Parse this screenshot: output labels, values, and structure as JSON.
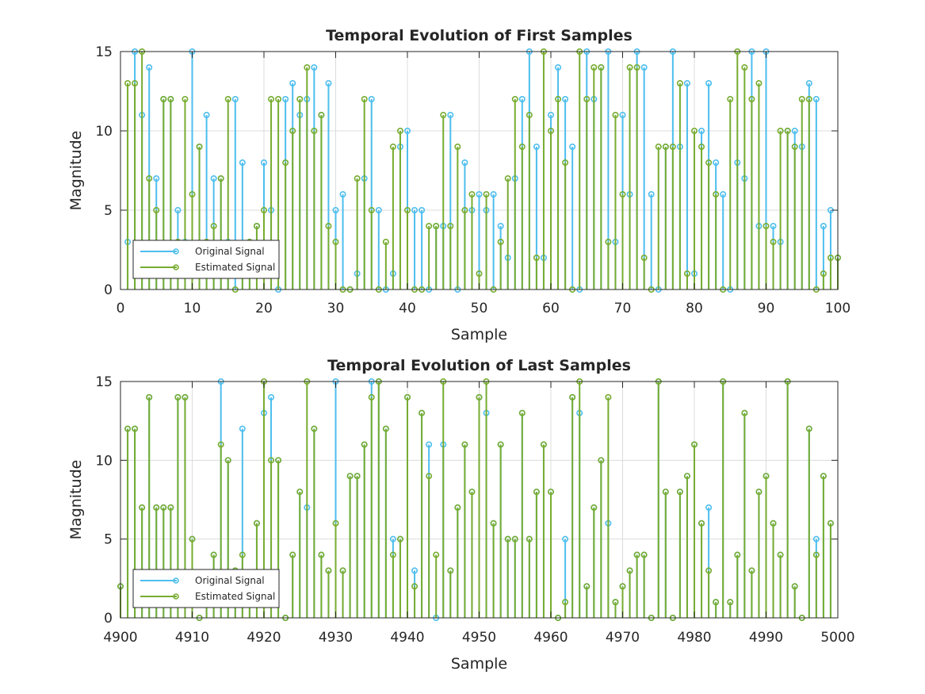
{
  "colors": {
    "original": "#4DBEEE",
    "estimated": "#77AC30",
    "grid": "#dcdcdc",
    "axis": "#262626"
  },
  "chart_data": [
    {
      "type": "stem",
      "title": "Temporal Evolution of First Samples",
      "xlabel": "Sample",
      "ylabel": "Magnitude",
      "xlim": [
        0,
        100
      ],
      "ylim": [
        0,
        15
      ],
      "xticks": [
        "0",
        "10",
        "20",
        "30",
        "40",
        "50",
        "60",
        "70",
        "80",
        "90",
        "100"
      ],
      "yticks": [
        "0",
        "5",
        "10",
        "15"
      ],
      "grid": true,
      "legend": {
        "position": "bottom-left",
        "entries": [
          "Original Signal",
          "Estimated Signal"
        ]
      },
      "x_start": 1,
      "series": [
        {
          "name": "Original Signal",
          "values": [
            3,
            15,
            11,
            14,
            7,
            12,
            12,
            5,
            3,
            15,
            9,
            11,
            7,
            7,
            3,
            12,
            8,
            3,
            4,
            8,
            5,
            0,
            12,
            13,
            11,
            12,
            14,
            11,
            13,
            5,
            6,
            0,
            1,
            7,
            12,
            5,
            0,
            1,
            9,
            10,
            5,
            5,
            0,
            4,
            4,
            11,
            0,
            8,
            5,
            6,
            5,
            6,
            4,
            2,
            7,
            12,
            15,
            9,
            2,
            11,
            14,
            12,
            9,
            0,
            15,
            12,
            14,
            15,
            3,
            11,
            6,
            15,
            14,
            6,
            0,
            9,
            15,
            9,
            13,
            1,
            10,
            13,
            8,
            6,
            0,
            8,
            7,
            15,
            4,
            15,
            4,
            3,
            10,
            10,
            9,
            13,
            12,
            4,
            5,
            2
          ]
        },
        {
          "name": "Estimated Signal",
          "values": [
            13,
            13,
            15,
            7,
            5,
            12,
            12,
            3,
            12,
            6,
            9,
            3,
            4,
            7,
            12,
            0,
            1,
            3,
            4,
            5,
            12,
            12,
            8,
            10,
            12,
            14,
            10,
            11,
            4,
            3,
            0,
            0,
            7,
            12,
            5,
            0,
            3,
            9,
            10,
            5,
            0,
            0,
            4,
            4,
            11,
            4,
            9,
            5,
            6,
            1,
            6,
            0,
            3,
            7,
            12,
            9,
            11,
            2,
            15,
            10,
            12,
            8,
            0,
            15,
            12,
            14,
            14,
            3,
            11,
            6,
            14,
            14,
            2,
            0,
            9,
            9,
            9,
            13,
            1,
            10,
            9,
            8,
            6,
            0,
            12,
            15,
            14,
            12,
            13,
            4,
            3,
            10,
            10,
            9,
            12,
            12,
            0,
            1,
            2,
            2
          ]
        }
      ]
    },
    {
      "type": "stem",
      "title": "Temporal Evolution of Last Samples",
      "xlabel": "Sample",
      "ylabel": "Magnitude",
      "xlim": [
        4900,
        5000
      ],
      "ylim": [
        0,
        15
      ],
      "xticks": [
        "4900",
        "4910",
        "4920",
        "4930",
        "4940",
        "4950",
        "4960",
        "4970",
        "4980",
        "4990",
        "5000"
      ],
      "yticks": [
        "0",
        "5",
        "10",
        "15"
      ],
      "grid": true,
      "legend": {
        "position": "bottom-left",
        "entries": [
          "Original Signal",
          "Estimated Signal"
        ]
      },
      "x_start": 4900,
      "series": [
        {
          "name": "Original Signal",
          "values": [
            2,
            12,
            12,
            7,
            14,
            7,
            7,
            7,
            14,
            14,
            5,
            0,
            2,
            4,
            15,
            10,
            3,
            12,
            2,
            6,
            13,
            14,
            10,
            0,
            4,
            8,
            7,
            12,
            4,
            3,
            15,
            3,
            9,
            9,
            11,
            15,
            15,
            12,
            5,
            5,
            14,
            3,
            13,
            11,
            0,
            11,
            3,
            7,
            11,
            8,
            14,
            13,
            6,
            11,
            5,
            5,
            13,
            5,
            8,
            11,
            8,
            0,
            5,
            14,
            13,
            2,
            7,
            10,
            6,
            1,
            2,
            3,
            4,
            4,
            0,
            15,
            8,
            0,
            8,
            9,
            11,
            6,
            7,
            1,
            15,
            1,
            4,
            13,
            3,
            8,
            9,
            6,
            4,
            15,
            2,
            0,
            12,
            5,
            9,
            6
          ]
        },
        {
          "name": "Estimated Signal",
          "values": [
            2,
            12,
            12,
            7,
            14,
            7,
            7,
            7,
            14,
            14,
            5,
            0,
            2,
            4,
            11,
            10,
            3,
            4,
            2,
            6,
            15,
            10,
            10,
            0,
            4,
            8,
            15,
            12,
            4,
            3,
            6,
            3,
            9,
            9,
            11,
            14,
            15,
            12,
            4,
            5,
            14,
            2,
            13,
            9,
            4,
            15,
            3,
            7,
            11,
            8,
            14,
            15,
            6,
            11,
            5,
            5,
            13,
            5,
            8,
            11,
            8,
            0,
            1,
            14,
            15,
            2,
            7,
            10,
            14,
            1,
            2,
            3,
            4,
            4,
            0,
            15,
            8,
            0,
            8,
            9,
            11,
            6,
            3,
            1,
            15,
            1,
            4,
            13,
            3,
            8,
            9,
            6,
            4,
            15,
            2,
            0,
            12,
            4,
            9,
            6
          ]
        }
      ]
    }
  ]
}
